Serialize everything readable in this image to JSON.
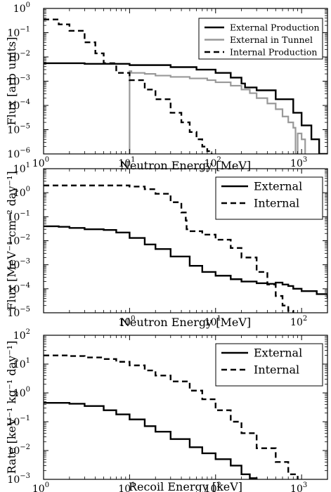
{
  "chart_data": [
    {
      "type": "line",
      "xscale": "log",
      "yscale": "log",
      "xlim": [
        1,
        2000
      ],
      "ylim": [
        1e-06,
        1
      ],
      "xlabel": "Neutron Energy [MeV]",
      "ylabel": "Flux [arb units]",
      "x_ticks": [
        {
          "value": 1,
          "label": "10",
          "exp": "0"
        },
        {
          "value": 10,
          "label": "10",
          "exp": "1"
        },
        {
          "value": 100,
          "label": "10",
          "exp": "2"
        },
        {
          "value": 1000,
          "label": "10",
          "exp": "3"
        }
      ],
      "y_ticks": [
        {
          "value": 1e-06,
          "label": "10",
          "exp": "−6"
        },
        {
          "value": 1e-05,
          "label": "10",
          "exp": "−5"
        },
        {
          "value": 0.0001,
          "label": "10",
          "exp": "−4"
        },
        {
          "value": 0.001,
          "label": "10",
          "exp": "−3"
        },
        {
          "value": 0.01,
          "label": "10",
          "exp": "−2"
        },
        {
          "value": 0.1,
          "label": "10",
          "exp": "−1"
        },
        {
          "value": 1,
          "label": "10",
          "exp": "0"
        }
      ],
      "legend_position": "top-right",
      "grid": false,
      "series": [
        {
          "name": "External Production",
          "color": "#000000",
          "dash": "solid",
          "x": [
            1,
            3,
            10,
            30,
            60,
            100,
            150,
            200,
            220,
            300,
            500,
            800,
            1000,
            1300,
            1600,
            2000
          ],
          "y": [
            0.0055,
            0.0052,
            0.0046,
            0.0038,
            0.003,
            0.0022,
            0.0014,
            0.0008,
            0.00055,
            0.00042,
            0.00018,
            5e-05,
            1.5e-05,
            4e-06,
            1e-06,
            3e-07
          ]
        },
        {
          "name": "External in Tunnel",
          "color": "#999999",
          "dash": "solid",
          "x": [
            9.99,
            10,
            10.5,
            15,
            20,
            30,
            50,
            80,
            100,
            150,
            200,
            250,
            300,
            400,
            500,
            600,
            700,
            800,
            850,
            900,
            1000,
            1100
          ],
          "y": [
            1e-06,
            0.0026,
            0.0022,
            0.002,
            0.0017,
            0.0015,
            0.0013,
            0.0011,
            0.0009,
            0.00065,
            0.00045,
            0.00032,
            0.0002,
            0.00012,
            7e-05,
            3.5e-05,
            2e-05,
            1.2e-05,
            1e-06,
            7e-06,
            4e-06,
            1e-06
          ]
        },
        {
          "name": "Internal Production",
          "color": "#000000",
          "dash": "dashed",
          "x": [
            1,
            1.5,
            2,
            3,
            4,
            5,
            7,
            10,
            15,
            20,
            30,
            40,
            50,
            60,
            70,
            80,
            90
          ],
          "y": [
            0.35,
            0.22,
            0.12,
            0.04,
            0.014,
            0.0055,
            0.0022,
            0.0011,
            0.00045,
            0.00018,
            5e-05,
            2e-05,
            8e-06,
            4e-06,
            2e-06,
            1.3e-06,
            1e-06
          ]
        }
      ]
    },
    {
      "type": "line",
      "xscale": "log",
      "yscale": "log",
      "xlim": [
        0.1,
        200
      ],
      "ylim": [
        1e-05,
        10
      ],
      "xlabel": "Neutron Energy [MeV]",
      "ylabel": "Flux [MeV⁻¹ cm⁻² day⁻¹]",
      "x_ticks": [
        {
          "value": 1,
          "label": "10",
          "exp": "0"
        },
        {
          "value": 10,
          "label": "10",
          "exp": "1"
        },
        {
          "value": 100,
          "label": "10",
          "exp": "2"
        }
      ],
      "y_ticks": [
        {
          "value": 1e-05,
          "label": "10",
          "exp": "−5"
        },
        {
          "value": 0.0001,
          "label": "10",
          "exp": "−4"
        },
        {
          "value": 0.001,
          "label": "10",
          "exp": "−3"
        },
        {
          "value": 0.01,
          "label": "10",
          "exp": "−2"
        },
        {
          "value": 0.1,
          "label": "10",
          "exp": "−1"
        },
        {
          "value": 1,
          "label": "10",
          "exp": "0"
        },
        {
          "value": 10,
          "label": "10",
          "exp": "1"
        }
      ],
      "legend_position": "top-right",
      "grid": false,
      "series": [
        {
          "name": "External",
          "color": "#000000",
          "dash": "solid",
          "x": [
            0.1,
            0.15,
            0.2,
            0.3,
            0.5,
            0.7,
            1,
            1.5,
            2,
            3,
            5,
            7,
            10,
            15,
            20,
            30,
            40,
            50,
            60,
            70,
            80,
            100,
            150,
            200
          ],
          "y": [
            0.04,
            0.038,
            0.034,
            0.03,
            0.028,
            0.022,
            0.013,
            0.007,
            0.0045,
            0.0022,
            0.0009,
            0.0005,
            0.00035,
            0.00025,
            0.0002,
            0.00017,
            0.00016,
            0.00018,
            0.00015,
            0.00013,
            0.0001,
            8e-05,
            6e-05,
            4e-05
          ]
        },
        {
          "name": "Internal",
          "color": "#000000",
          "dash": "dashed",
          "x": [
            0.1,
            0.3,
            0.5,
            1,
            1.5,
            2,
            3,
            4,
            4.5,
            4.6,
            5,
            7,
            10,
            15,
            20,
            30,
            40,
            50,
            60,
            70,
            80
          ],
          "y": [
            2.0,
            2.0,
            2.0,
            1.8,
            1.4,
            0.9,
            0.4,
            0.15,
            0.07,
            0.03,
            0.025,
            0.018,
            0.011,
            0.005,
            0.002,
            0.0005,
            0.00015,
            5e-05,
            2e-05,
            1.2e-05,
            1e-05
          ]
        }
      ]
    },
    {
      "type": "line",
      "xscale": "log",
      "yscale": "log",
      "xlim": [
        1,
        2000
      ],
      "ylim": [
        0.001,
        100
      ],
      "xlabel": "Recoil Energy [keV]",
      "ylabel": "Rate [keV⁻¹ kg⁻¹ day⁻¹]",
      "x_ticks": [
        {
          "value": 1,
          "label": "10",
          "exp": "0"
        },
        {
          "value": 10,
          "label": "10",
          "exp": "1"
        },
        {
          "value": 100,
          "label": "10",
          "exp": "2"
        },
        {
          "value": 1000,
          "label": "10",
          "exp": "3"
        }
      ],
      "y_ticks": [
        {
          "value": 0.001,
          "label": "10",
          "exp": "−3"
        },
        {
          "value": 0.01,
          "label": "10",
          "exp": "−2"
        },
        {
          "value": 0.1,
          "label": "10",
          "exp": "−1"
        },
        {
          "value": 1,
          "label": "10",
          "exp": "0"
        },
        {
          "value": 10,
          "label": "10",
          "exp": "1"
        },
        {
          "value": 100,
          "label": "10",
          "exp": "2"
        }
      ],
      "legend_position": "top-right",
      "grid": false,
      "series": [
        {
          "name": "External",
          "color": "#000000",
          "dash": "solid",
          "x": [
            1,
            2,
            3,
            5,
            7,
            10,
            15,
            20,
            30,
            50,
            70,
            100,
            150,
            200,
            250,
            300
          ],
          "y": [
            0.45,
            0.42,
            0.35,
            0.25,
            0.18,
            0.12,
            0.07,
            0.045,
            0.025,
            0.013,
            0.008,
            0.005,
            0.003,
            0.0015,
            0.0011,
            0.001
          ]
        },
        {
          "name": "Internal",
          "color": "#000000",
          "dash": "dashed",
          "x": [
            1,
            2,
            3,
            5,
            7,
            10,
            15,
            20,
            30,
            50,
            70,
            100,
            150,
            200,
            300,
            500,
            700,
            900
          ],
          "y": [
            20,
            19,
            17,
            15,
            12,
            9,
            6,
            4,
            2.5,
            1.2,
            0.6,
            0.25,
            0.1,
            0.04,
            0.012,
            0.004,
            0.0015,
            0.001
          ]
        }
      ]
    }
  ]
}
